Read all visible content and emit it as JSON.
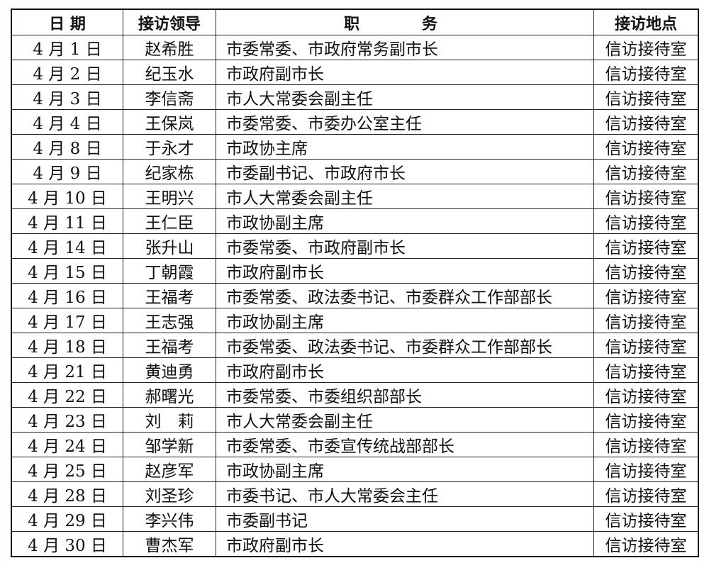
{
  "headers": [
    "日 期",
    "接访领导",
    "职 务",
    "接访地点"
  ],
  "rows": [
    [
      "4 月 1 日",
      "赵希胜",
      "市委常委、市政府常务副市长",
      "信访接待室"
    ],
    [
      "4 月 2 日",
      "纪玉水",
      "市政府副市长",
      "信访接待室"
    ],
    [
      "4 月 3 日",
      "李信斋",
      "市人大常委会副主任",
      "信访接待室"
    ],
    [
      "4 月 4 日",
      "王保岚",
      "市委常委、市委办公室主任",
      "信访接待室"
    ],
    [
      "4 月 8 日",
      "于永才",
      "市政协主席",
      "信访接待室"
    ],
    [
      "4 月 9 日",
      "纪家栋",
      "市委副书记、市政府市长",
      "信访接待室"
    ],
    [
      "4 月 10 日",
      "王明兴",
      "市人大常委会副主任",
      "信访接待室"
    ],
    [
      "4 月 11 日",
      "王仁臣",
      "市政协副主席",
      "信访接待室"
    ],
    [
      "4 月 14 日",
      "张升山",
      "市委常委、市政府副市长",
      "信访接待室"
    ],
    [
      "4 月 15 日",
      "丁朝霞",
      "市政府副市长",
      "信访接待室"
    ],
    [
      "4 月 16 日",
      "王福考",
      "市委常委、政法委书记、市委群众工作部部长",
      "信访接待室"
    ],
    [
      "4 月 17 日",
      "王志强",
      "市政协副主席",
      "信访接待室"
    ],
    [
      "4 月 18 日",
      "王福考",
      "市委常委、政法委书记、市委群众工作部部长",
      "信访接待室"
    ],
    [
      "4 月 21 日",
      "黄迪勇",
      "市政府副市长",
      "信访接待室"
    ],
    [
      "4 月 22 日",
      "郝曙光",
      "市委常委、市委组织部部长",
      "信访接待室"
    ],
    [
      "4 月 23 日",
      "刘　莉",
      "市人大常委会副主任",
      "信访接待室"
    ],
    [
      "4 月 24 日",
      "邹学新",
      "市委常委、市委宣传统战部部长",
      "信访接待室"
    ],
    [
      "4 月 25 日",
      "赵彦军",
      "市政协副主席",
      "信访接待室"
    ],
    [
      "4 月 28 日",
      "刘圣珍",
      "市委书记、市人大常委会主任",
      "信访接待室"
    ],
    [
      "4 月 29 日",
      "李兴伟",
      "市委副书记",
      "信访接待室"
    ],
    [
      "4 月 30 日",
      "曹杰军",
      "市政府副市长",
      "信访接待室"
    ]
  ]
}
